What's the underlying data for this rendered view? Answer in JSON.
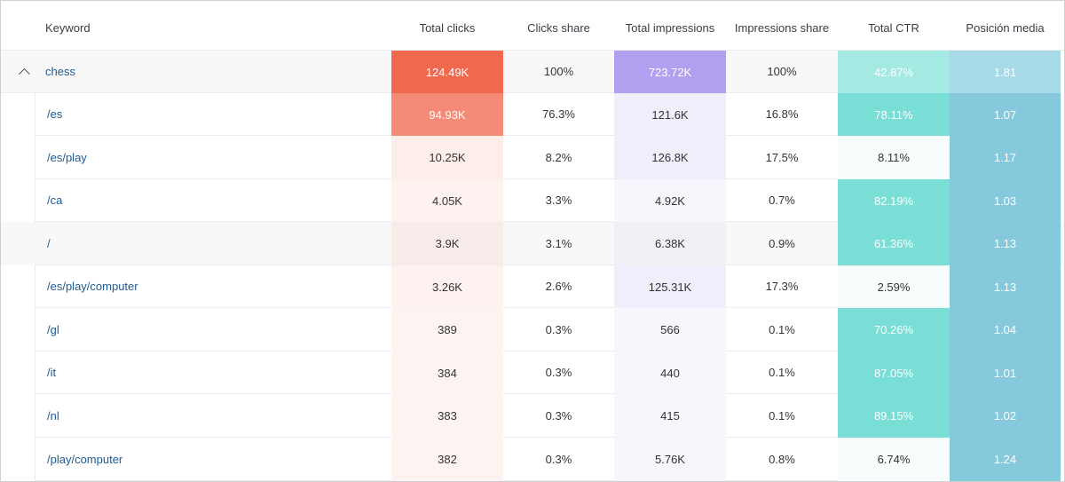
{
  "headers": {
    "keyword": "Keyword",
    "total_clicks": "Total clicks",
    "clicks_share": "Clicks share",
    "total_impressions": "Total impressions",
    "impressions_share": "Impressions share",
    "total_ctr": "Total CTR",
    "posicion_media": "Posición media"
  },
  "parent_row": {
    "keyword": "chess",
    "total_clicks": "124.49K",
    "clicks_share": "100%",
    "total_impressions": "723.72K",
    "impressions_share": "100%",
    "total_ctr": "42.87%",
    "posicion_media": "1.81"
  },
  "rows": [
    {
      "keyword": "/es",
      "total_clicks": "94.93K",
      "clicks_share": "76.3%",
      "total_impressions": "121.6K",
      "impressions_share": "16.8%",
      "total_ctr": "78.11%",
      "posicion_media": "1.07"
    },
    {
      "keyword": "/es/play",
      "total_clicks": "10.25K",
      "clicks_share": "8.2%",
      "total_impressions": "126.8K",
      "impressions_share": "17.5%",
      "total_ctr": "8.11%",
      "posicion_media": "1.17"
    },
    {
      "keyword": "/ca",
      "total_clicks": "4.05K",
      "clicks_share": "3.3%",
      "total_impressions": "4.92K",
      "impressions_share": "0.7%",
      "total_ctr": "82.19%",
      "posicion_media": "1.03"
    },
    {
      "keyword": "/",
      "total_clicks": "3.9K",
      "clicks_share": "3.1%",
      "total_impressions": "6.38K",
      "impressions_share": "0.9%",
      "total_ctr": "61.36%",
      "posicion_media": "1.13"
    },
    {
      "keyword": "/es/play/computer",
      "total_clicks": "3.26K",
      "clicks_share": "2.6%",
      "total_impressions": "125.31K",
      "impressions_share": "17.3%",
      "total_ctr": "2.59%",
      "posicion_media": "1.13"
    },
    {
      "keyword": "/gl",
      "total_clicks": "389",
      "clicks_share": "0.3%",
      "total_impressions": "566",
      "impressions_share": "0.1%",
      "total_ctr": "70.26%",
      "posicion_media": "1.04"
    },
    {
      "keyword": "/it",
      "total_clicks": "384",
      "clicks_share": "0.3%",
      "total_impressions": "440",
      "impressions_share": "0.1%",
      "total_ctr": "87.05%",
      "posicion_media": "1.01"
    },
    {
      "keyword": "/nl",
      "total_clicks": "383",
      "clicks_share": "0.3%",
      "total_impressions": "415",
      "impressions_share": "0.1%",
      "total_ctr": "89.15%",
      "posicion_media": "1.02"
    },
    {
      "keyword": "/play/computer",
      "total_clicks": "382",
      "clicks_share": "0.3%",
      "total_impressions": "5.76K",
      "impressions_share": "0.8%",
      "total_ctr": "6.74%",
      "posicion_media": "1.24"
    }
  ],
  "icons": {
    "expand_toggle": "chevron-up-icon"
  },
  "colors": {
    "clicks_strong": "#f0684d",
    "clicks_medium": "#f58b76",
    "clicks_light": "#fdeeea",
    "clicks_lighter": "#fdf4f2",
    "impressions_strong": "#b19ff0",
    "impressions_light": "#f1eefc",
    "impressions_lighter": "#f8f6fd",
    "ctr_strong": "#79ded5",
    "ctr_parent": "#a4e9e2",
    "ctr_light": "#f4fcfb",
    "position_strong": "#8ecfe0",
    "position_parent": "#a8d9e7",
    "link": "#1f5a94"
  }
}
